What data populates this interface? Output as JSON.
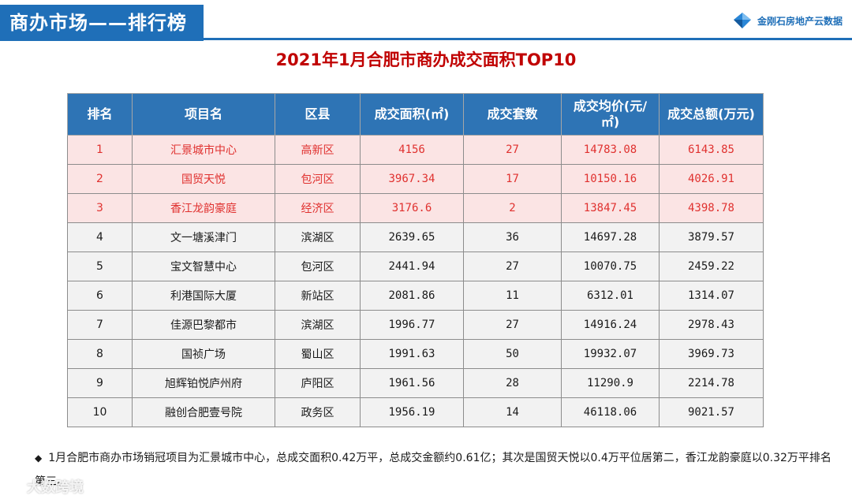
{
  "header": {
    "section_title": "商办市场——排行榜",
    "brand_text": "金刚石房地产云数据"
  },
  "table_title": "2021年1月合肥市商办成交面积TOP10",
  "columns": [
    "排名",
    "项目名",
    "区县",
    "成交面积(㎡)",
    "成交套数",
    "成交均价(元/㎡)",
    "成交总额(万元)"
  ],
  "rows": [
    {
      "rank": "1",
      "project": "汇景城市中心",
      "district": "高新区",
      "area": "4156",
      "sets": "27",
      "avg_price": "14783.08",
      "total": "6143.85"
    },
    {
      "rank": "2",
      "project": "国贸天悦",
      "district": "包河区",
      "area": "3967.34",
      "sets": "17",
      "avg_price": "10150.16",
      "total": "4026.91"
    },
    {
      "rank": "3",
      "project": "香江龙韵豪庭",
      "district": "经济区",
      "area": "3176.6",
      "sets": "2",
      "avg_price": "13847.45",
      "total": "4398.78"
    },
    {
      "rank": "4",
      "project": "文一塘溪津门",
      "district": "滨湖区",
      "area": "2639.65",
      "sets": "36",
      "avg_price": "14697.28",
      "total": "3879.57"
    },
    {
      "rank": "5",
      "project": "宝文智慧中心",
      "district": "包河区",
      "area": "2441.94",
      "sets": "27",
      "avg_price": "10070.75",
      "total": "2459.22"
    },
    {
      "rank": "6",
      "project": "利港国际大厦",
      "district": "新站区",
      "area": "2081.86",
      "sets": "11",
      "avg_price": "6312.01",
      "total": "1314.07"
    },
    {
      "rank": "7",
      "project": "佳源巴黎都市",
      "district": "滨湖区",
      "area": "1996.77",
      "sets": "27",
      "avg_price": "14916.24",
      "total": "2978.43"
    },
    {
      "rank": "8",
      "project": "国祯广场",
      "district": "蜀山区",
      "area": "1991.63",
      "sets": "50",
      "avg_price": "19932.07",
      "total": "3969.73"
    },
    {
      "rank": "9",
      "project": "旭辉铂悦庐州府",
      "district": "庐阳区",
      "area": "1961.56",
      "sets": "28",
      "avg_price": "11290.9",
      "total": "2214.78"
    },
    {
      "rank": "10",
      "project": "融创合肥壹号院",
      "district": "政务区",
      "area": "1956.19",
      "sets": "14",
      "avg_price": "46118.06",
      "total": "9021.57"
    }
  ],
  "note": "1月合肥市商办市场销冠项目为汇景城市中心，总成交面积0.42万平，总成交金额约0.61亿；其次是国贸天悦以0.4万平位居第二，香江龙韵豪庭以0.32万平排名第三。",
  "watermark": "大数跨境",
  "colors": {
    "header_blue": "#1f6fb8",
    "table_header": "#2e74b5",
    "top3_text": "#e0312f",
    "top3_bg": "#fbe4e4",
    "row_bg": "#f2f2f2"
  }
}
